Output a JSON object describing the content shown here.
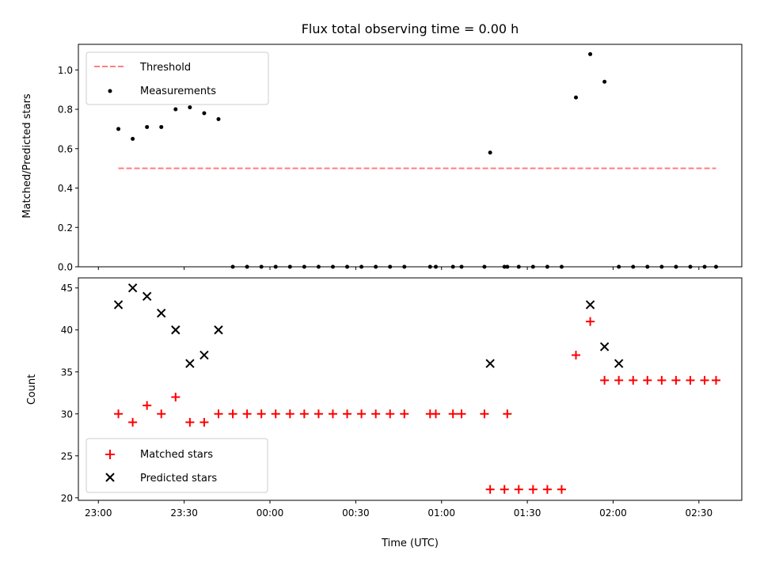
{
  "chart_data": [
    {
      "type": "scatter",
      "title": "Flux total observing time = 0.00 h",
      "xlabel": "",
      "ylabel": "Matched/Predicted stars",
      "ylim": [
        0,
        1.13
      ],
      "yticks": [
        0.0,
        0.2,
        0.4,
        0.6,
        0.8,
        1.0
      ],
      "ytick_labels": [
        "0.0",
        "0.2",
        "0.4",
        "0.6",
        "0.8",
        "1.0"
      ],
      "x_unit": "minutes after 23:00 UTC",
      "xlim": [
        -7,
        225
      ],
      "legend": {
        "placement": "upper-left",
        "entries": [
          {
            "label": "Threshold",
            "style": "dashed-line",
            "color": "#ff7f7f"
          },
          {
            "label": "Measurements",
            "style": "dot",
            "color": "#000000"
          }
        ]
      },
      "threshold": {
        "name": "Threshold",
        "value": 0.5,
        "x_start": 7,
        "x_end": 216,
        "color": "#ff7f7f"
      },
      "series": [
        {
          "name": "Measurements",
          "color": "#000000",
          "x": [
            7,
            12,
            17,
            22,
            27,
            32,
            37,
            42,
            47,
            52,
            57,
            62,
            67,
            72,
            77,
            82,
            87,
            92,
            97,
            102,
            107,
            116,
            118,
            124,
            127,
            135,
            143,
            137,
            142,
            147,
            152,
            157,
            162,
            167,
            172,
            177,
            182,
            187,
            192,
            197,
            202,
            207,
            212,
            216
          ],
          "y": [
            0.7,
            0.65,
            0.71,
            0.71,
            0.8,
            0.81,
            0.78,
            0.75,
            0.0,
            0.0,
            0.0,
            0.0,
            0.0,
            0.0,
            0.0,
            0.0,
            0.0,
            0.0,
            0.0,
            0.0,
            0.0,
            0.0,
            0.0,
            0.0,
            0.0,
            0.0,
            0.0,
            0.58,
            0.0,
            0.0,
            0.0,
            0.0,
            0.0,
            0.86,
            1.08,
            0.94,
            0.0,
            0.0,
            0.0,
            0.0,
            0.0,
            0.0,
            0.0,
            0.0
          ]
        }
      ]
    },
    {
      "type": "scatter",
      "title": "",
      "xlabel": "Time (UTC)",
      "ylabel": "Count",
      "ylim": [
        19.7,
        46.2
      ],
      "yticks": [
        20,
        25,
        30,
        35,
        40,
        45
      ],
      "ytick_labels": [
        "20",
        "25",
        "30",
        "35",
        "40",
        "45"
      ],
      "x_unit": "minutes after 23:00 UTC",
      "xlim": [
        -7,
        225
      ],
      "xticks": [
        0,
        30,
        60,
        90,
        120,
        150,
        180,
        210
      ],
      "xtick_labels": [
        "23:00",
        "23:30",
        "00:00",
        "00:30",
        "01:00",
        "01:30",
        "02:00",
        "02:30"
      ],
      "legend": {
        "placement": "lower-left",
        "entries": [
          {
            "label": "Matched stars",
            "style": "plus",
            "color": "#ff0000"
          },
          {
            "label": "Predicted stars",
            "style": "x",
            "color": "#000000"
          }
        ]
      },
      "series": [
        {
          "name": "Matched stars",
          "color": "#ff0000",
          "x": [
            7,
            12,
            17,
            22,
            27,
            32,
            37,
            42,
            47,
            52,
            57,
            62,
            67,
            72,
            77,
            82,
            87,
            92,
            97,
            102,
            107,
            116,
            118,
            124,
            127,
            135,
            143,
            137,
            142,
            147,
            152,
            157,
            162,
            167,
            172,
            177,
            182,
            187,
            192,
            197,
            202,
            207,
            212,
            216
          ],
          "y": [
            30,
            29,
            31,
            30,
            32,
            29,
            29,
            30,
            30,
            30,
            30,
            30,
            30,
            30,
            30,
            30,
            30,
            30,
            30,
            30,
            30,
            30,
            30,
            30,
            30,
            30,
            30,
            21,
            21,
            21,
            21,
            21,
            21,
            37,
            41,
            34,
            34,
            34,
            34,
            34,
            34,
            34,
            34,
            34
          ]
        },
        {
          "name": "Predicted stars",
          "color": "#000000",
          "x": [
            7,
            12,
            17,
            22,
            27,
            32,
            37,
            42,
            137,
            172,
            177,
            182
          ],
          "y": [
            43,
            45,
            44,
            42,
            40,
            36,
            37,
            40,
            36,
            43,
            38,
            36
          ]
        }
      ]
    }
  ]
}
